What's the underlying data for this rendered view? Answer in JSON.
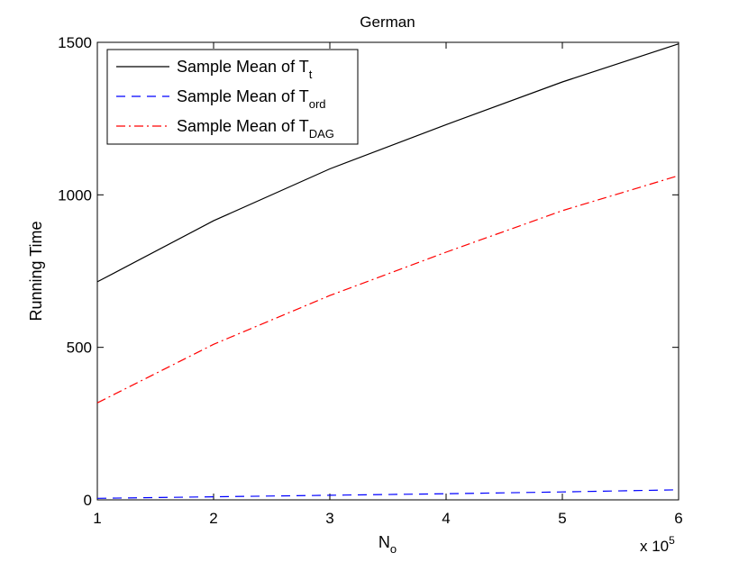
{
  "chart_data": {
    "type": "line",
    "title": "German",
    "xlabel": {
      "main": "N",
      "sub": "o"
    },
    "ylabel": "Running Time",
    "x_multiplier": {
      "prefix": "x 10",
      "exponent": "5"
    },
    "x": [
      1,
      2,
      3,
      4,
      5,
      6
    ],
    "xlim": [
      1,
      6
    ],
    "ylim": [
      0,
      1500
    ],
    "xticks": [
      "1",
      "2",
      "3",
      "4",
      "5",
      "6"
    ],
    "yticks": [
      "0",
      "500",
      "1000",
      "1500"
    ],
    "ytick_values": [
      0,
      500,
      1000,
      1500
    ],
    "grid": false,
    "legend_position": "top-left",
    "series": [
      {
        "name": "Sample Mean of T",
        "subscript": "t",
        "color": "#000000",
        "style": "solid",
        "values": [
          715,
          915,
          1085,
          1230,
          1370,
          1495
        ]
      },
      {
        "name": "Sample Mean of T",
        "subscript": "ord",
        "color": "#0000ff",
        "style": "dashed",
        "values": [
          5,
          10,
          15,
          20,
          26,
          33
        ]
      },
      {
        "name": "Sample Mean of T",
        "subscript": "DAG",
        "color": "#ff0000",
        "style": "dashdot",
        "values": [
          318,
          510,
          670,
          812,
          948,
          1063
        ]
      }
    ]
  }
}
